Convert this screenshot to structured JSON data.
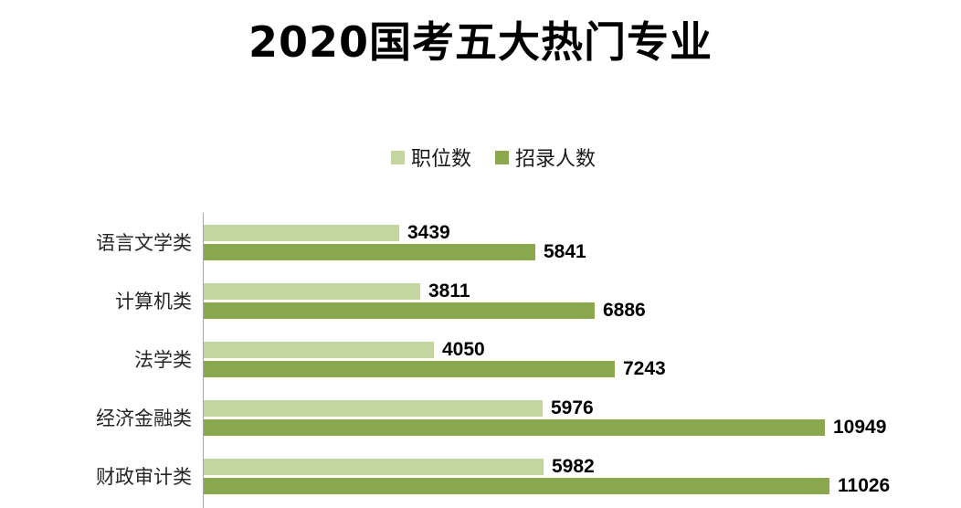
{
  "title": "2020国考五大热门专业",
  "legend": {
    "items": [
      {
        "label": "职位数",
        "color": "#c3d69f"
      },
      {
        "label": "招录人数",
        "color": "#8ba84e"
      }
    ]
  },
  "colors": {
    "series_light": "#c3d69f",
    "series_dark": "#8ba84e",
    "axis_line": "#a6a6a6",
    "value_text": "#000000",
    "category_text": "#262626",
    "background": "#ffffff"
  },
  "chart_data": {
    "type": "bar",
    "orientation": "horizontal",
    "title": "2020国考五大热门专业",
    "categories": [
      "语言文学类",
      "计算机类",
      "法学类",
      "经济金融类",
      "财政审计类"
    ],
    "series": [
      {
        "name": "职位数",
        "color": "#c3d69f",
        "values": [
          3439,
          3811,
          4050,
          5976,
          5982
        ]
      },
      {
        "name": "招录人数",
        "color": "#8ba84e",
        "values": [
          5841,
          6886,
          7243,
          10949,
          11026
        ]
      }
    ],
    "value_labels": true,
    "legend_position": "top-center",
    "axis": {
      "baseline": "left-vertical"
    },
    "xlim": [
      0,
      11026
    ],
    "grid": false
  }
}
